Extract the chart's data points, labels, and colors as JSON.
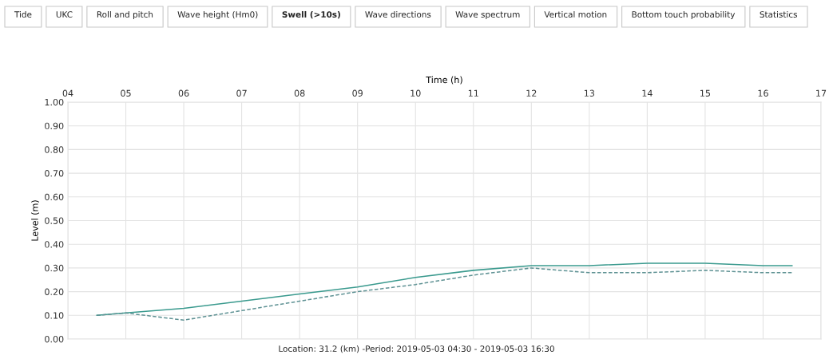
{
  "chart_data": {
    "type": "line",
    "xlabel": "Time (h)",
    "ylabel": "Level (m)",
    "annotations": [
      "Tide",
      "UKC",
      "Roll and pitch",
      "Wave height (Hm0)",
      "Swell (>10s)",
      "Wave directions",
      "Wave spectrum",
      "Vertical motion",
      "Bottom touch probability",
      "Statistics",
      "Location: 31.2 (km) -Period: 2019-05-03 04:30 - 2019-05-03 16:30"
    ],
    "x": [
      4.5,
      5,
      6,
      7,
      8,
      9,
      10,
      11,
      12,
      13,
      14,
      15,
      16,
      16.5
    ],
    "series": [
      {
        "color": "#3a9a8e",
        "line_style": "solid",
        "values": [
          0.1,
          0.11,
          0.13,
          0.16,
          0.19,
          0.22,
          0.26,
          0.29,
          0.31,
          0.31,
          0.32,
          0.32,
          0.31,
          0.31
        ]
      },
      {
        "color": "#5f9294",
        "line_style": "dashed",
        "values": [
          0.1,
          0.11,
          0.08,
          0.12,
          0.16,
          0.2,
          0.23,
          0.27,
          0.3,
          0.28,
          0.28,
          0.29,
          0.28,
          0.28
        ]
      }
    ],
    "xlim": [
      4,
      17
    ],
    "xticks": [
      {
        "value": 4,
        "label": "04"
      },
      {
        "value": 5,
        "label": "05"
      },
      {
        "value": 6,
        "label": "06"
      },
      {
        "value": 7,
        "label": "07"
      },
      {
        "value": 8,
        "label": "08"
      },
      {
        "value": 9,
        "label": "09"
      },
      {
        "value": 10,
        "label": "10"
      },
      {
        "value": 11,
        "label": "11"
      },
      {
        "value": 12,
        "label": "12"
      },
      {
        "value": 13,
        "label": "13"
      },
      {
        "value": 14,
        "label": "14"
      },
      {
        "value": 15,
        "label": "15"
      },
      {
        "value": 16,
        "label": "16"
      },
      {
        "value": 17,
        "label": "17"
      }
    ],
    "ylim": [
      0,
      1
    ],
    "yticks": [
      {
        "value": 0,
        "label": "0.00"
      },
      {
        "value": 0.1,
        "label": "0.10"
      },
      {
        "value": 0.2,
        "label": "0.20"
      },
      {
        "value": 0.3,
        "label": "0.30"
      },
      {
        "value": 0.4,
        "label": "0.40"
      },
      {
        "value": 0.5,
        "label": "0.50"
      },
      {
        "value": 0.6,
        "label": "0.60"
      },
      {
        "value": 0.7,
        "label": "0.70"
      },
      {
        "value": 0.8,
        "label": "0.80"
      },
      {
        "value": 0.9,
        "label": "0.90"
      },
      {
        "value": 1,
        "label": "1.00"
      }
    ],
    "grid": true
  }
}
